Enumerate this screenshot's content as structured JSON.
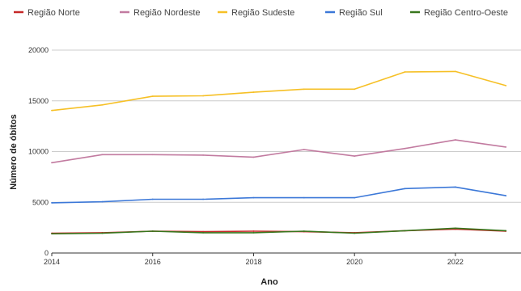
{
  "chart_data": {
    "type": "line",
    "title": "",
    "xlabel": "Ano",
    "ylabel": "Número de óbitos",
    "x": [
      2014,
      2015,
      2016,
      2017,
      2018,
      2019,
      2020,
      2021,
      2022,
      2023
    ],
    "xticks": [
      2014,
      2016,
      2018,
      2020,
      2022
    ],
    "ylim": [
      0,
      20000
    ],
    "yticks": [
      0,
      5000,
      10000,
      15000,
      20000
    ],
    "grid": "horizontal",
    "legend_position": "top",
    "series": [
      {
        "name": "Região Norte",
        "color": "#c62828",
        "values": [
          1950,
          2000,
          2150,
          2100,
          2150,
          2100,
          2000,
          2200,
          2350,
          2150
        ]
      },
      {
        "name": "Região Nordeste",
        "color": "#c27ba0",
        "values": [
          8900,
          9700,
          9700,
          9650,
          9450,
          10200,
          9550,
          10300,
          11150,
          10450
        ]
      },
      {
        "name": "Região Sudeste",
        "color": "#f6c026",
        "values": [
          14050,
          14600,
          15450,
          15500,
          15850,
          16150,
          16150,
          17850,
          17900,
          16500
        ]
      },
      {
        "name": "Região Sul",
        "color": "#3c78d8",
        "values": [
          4950,
          5050,
          5300,
          5300,
          5450,
          5450,
          5450,
          6350,
          6500,
          5650
        ]
      },
      {
        "name": "Região Centro-Oeste",
        "color": "#38761d",
        "values": [
          1900,
          1950,
          2150,
          2000,
          2000,
          2150,
          1950,
          2200,
          2450,
          2200
        ]
      }
    ]
  }
}
